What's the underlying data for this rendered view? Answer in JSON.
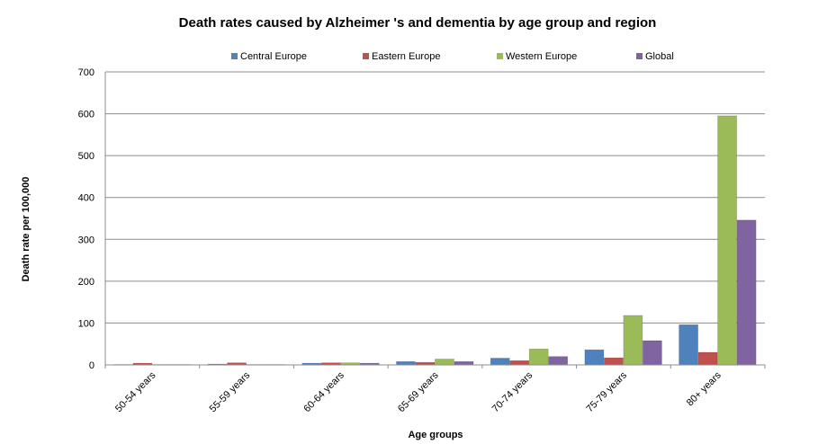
{
  "chart_data": {
    "type": "bar",
    "title": "Death rates caused by Alzheimer 's and dementia by age group and region",
    "xlabel": "Age groups",
    "ylabel": "Death rate per 100,000",
    "ylim": [
      0,
      700
    ],
    "yticks": [
      "0",
      "100",
      "200",
      "300",
      "400",
      "500",
      "600",
      "700"
    ],
    "grid": true,
    "legend_position": "top",
    "categories": [
      "50-54 years",
      "55-59 years",
      "60-64 years",
      "65-69 years",
      "70-74 years",
      "75-79 years",
      "80+ years"
    ],
    "series": [
      {
        "name": "Central Europe",
        "color": "#4F81BD",
        "values": [
          1,
          2,
          4,
          8,
          16,
          36,
          96
        ]
      },
      {
        "name": "Eastern Europe",
        "color": "#C0504D",
        "values": [
          4,
          5,
          5,
          6,
          10,
          17,
          30
        ]
      },
      {
        "name": "Western Europe",
        "color": "#9BBB59",
        "values": [
          1,
          1,
          5,
          14,
          38,
          118,
          595
        ]
      },
      {
        "name": "Global",
        "color": "#8064A2",
        "values": [
          1,
          1,
          4,
          8,
          20,
          58,
          346
        ]
      }
    ]
  }
}
